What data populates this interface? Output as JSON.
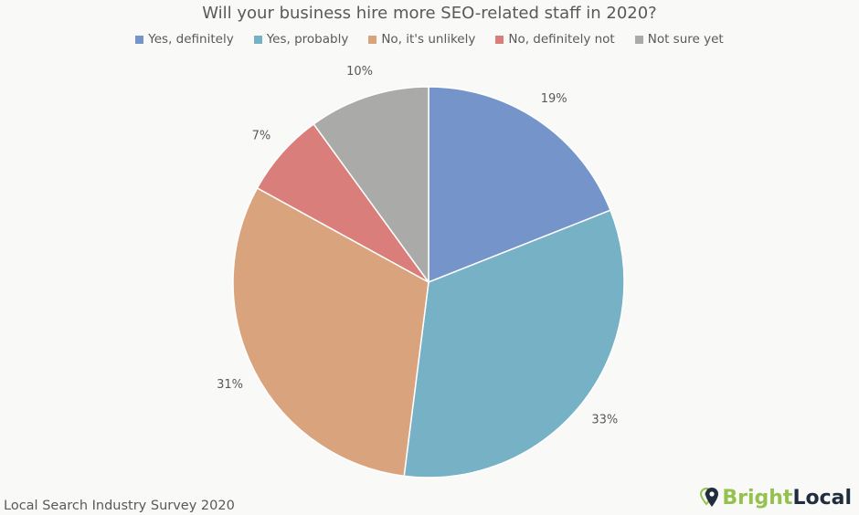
{
  "chart_data": {
    "type": "pie",
    "title": "Will your business hire more SEO-related staff in 2020?",
    "categories": [
      "Yes, definitely",
      "Yes, probably",
      "No, it's unlikely",
      "No, definitely not",
      "Not sure yet"
    ],
    "values": [
      19,
      33,
      31,
      7,
      10
    ],
    "labels": [
      "19%",
      "33%",
      "31%",
      "7%",
      "10%"
    ],
    "colors": [
      "#7594c9",
      "#76b1c6",
      "#d9a47d",
      "#d97e7b",
      "#aaaaa8"
    ],
    "start_angle_deg": 0,
    "direction": "clockwise",
    "legend_position": "top"
  },
  "footer": {
    "source": "Local Search Industry Survey 2020",
    "brand_part1": "Bright",
    "brand_part2": "Local"
  }
}
